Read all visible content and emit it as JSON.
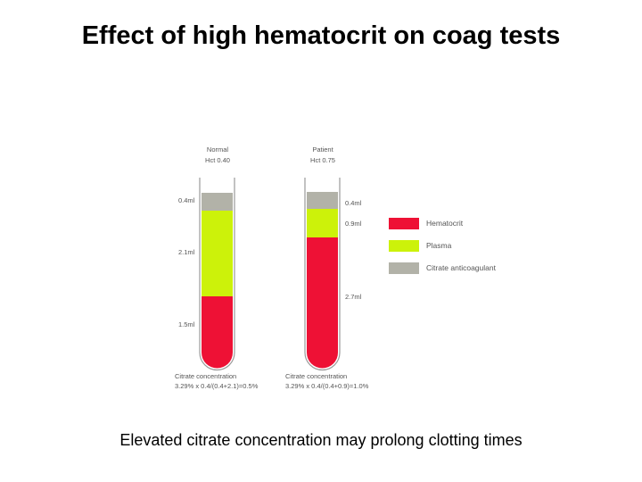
{
  "title": "Effect of high hematocrit on coag tests",
  "caption": "Elevated citrate concentration may prolong clotting times",
  "colors": {
    "hematocrit": "#ee1135",
    "plasma": "#ccf20a",
    "citrate": "#b2b2a8",
    "tube_outline": "#999999"
  },
  "tubes": {
    "normal": {
      "name": "Normal",
      "hct": "Hct 0.40",
      "citrate_ml": "0.4ml",
      "plasma_ml": "2.1ml",
      "cells_ml": "1.5ml",
      "conc_label": "Citrate concentration",
      "conc_formula": "3.29% x 0.4/(0.4+2.1)=0.5%",
      "volumes": {
        "citrate": 0.4,
        "plasma": 2.1,
        "cells": 1.5
      }
    },
    "patient": {
      "name": "Patient",
      "hct": "Hct 0.75",
      "citrate_ml": "0.4ml",
      "plasma_ml": "0.9ml",
      "cells_ml": "2.7ml",
      "conc_label": "Citrate concentration",
      "conc_formula": "3.29% x 0.4/(0.4+0.9)=1.0%",
      "volumes": {
        "citrate": 0.4,
        "plasma": 0.9,
        "cells": 2.7
      }
    }
  },
  "legend": {
    "hematocrit": "Hematocrit",
    "plasma": "Plasma",
    "citrate": "Citrate anticoagulant"
  }
}
